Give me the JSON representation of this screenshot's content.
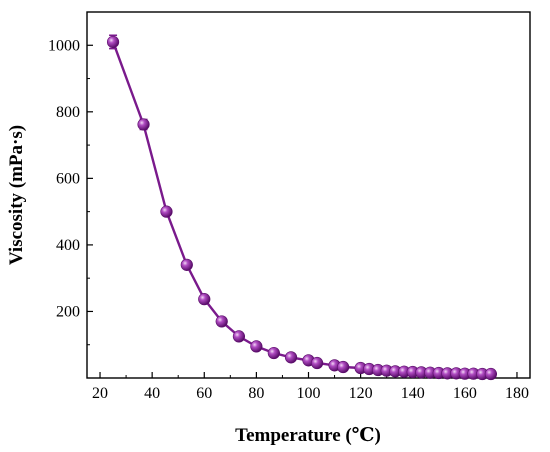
{
  "chart_data": {
    "type": "line",
    "title": "",
    "xlabel": "Temperature (℃)",
    "ylabel": "Viscosity (mPa·s)",
    "xlim": [
      15,
      185
    ],
    "ylim": [
      0,
      1100
    ],
    "xticks": [
      20,
      40,
      60,
      80,
      100,
      120,
      140,
      160,
      180
    ],
    "yticks": [
      200,
      400,
      600,
      800,
      1000
    ],
    "grid": false,
    "legend": "none",
    "series": [
      {
        "color": "#7a1a8c",
        "marker": "sphere",
        "error_bars": true,
        "x": [
          25,
          36.7,
          45.5,
          53.3,
          60,
          66.7,
          73.3,
          80,
          86.7,
          93.3,
          100,
          103.3,
          110,
          113.3,
          120,
          123.3,
          126.7,
          130,
          133.3,
          136.7,
          140,
          143.3,
          146.7,
          150,
          153.3,
          156.7,
          160,
          163.3,
          166.7,
          170
        ],
        "y": [
          1010,
          762,
          500,
          340,
          237,
          170,
          125,
          95,
          75,
          62,
          53,
          45,
          38,
          33,
          30,
          27,
          24,
          22,
          20,
          19,
          18,
          17,
          16,
          15,
          14,
          14,
          13,
          13,
          12,
          12
        ],
        "errors": [
          20,
          15,
          8,
          8,
          8,
          6,
          5,
          4,
          3,
          3,
          2,
          2,
          2,
          2,
          2,
          2,
          2,
          2,
          2,
          2,
          2,
          2,
          2,
          2,
          2,
          2,
          2,
          2,
          2,
          2
        ]
      }
    ]
  }
}
